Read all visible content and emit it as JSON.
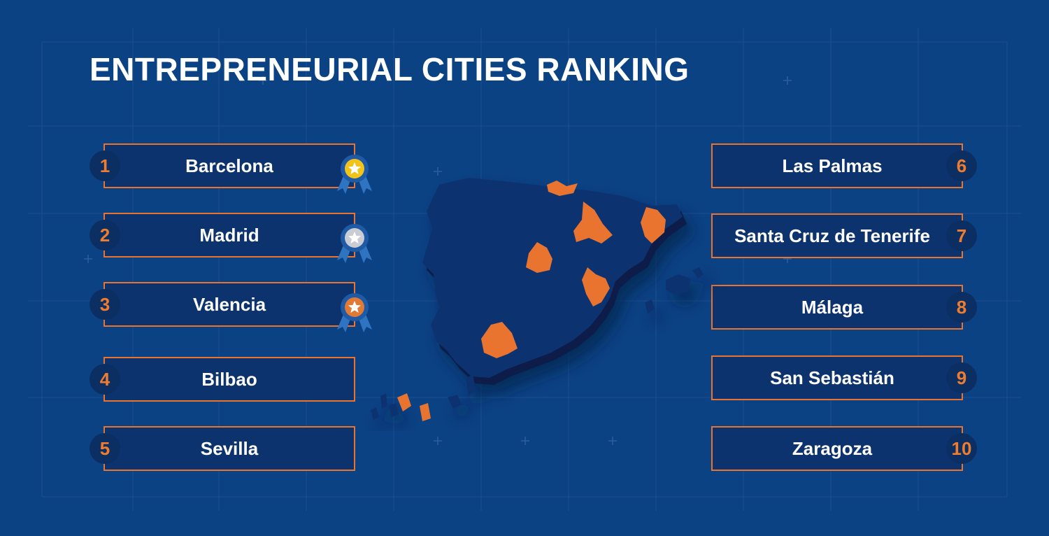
{
  "title": "ENTREPRENEURIAL CITIES RANKING",
  "colors": {
    "background": "#0b4284",
    "accent": "#e87430",
    "box_fill": "#0d336e",
    "gold": "#f2c318",
    "silver": "#c9ccd3",
    "bronze": "#e07a35"
  },
  "ranking": [
    {
      "rank": "1",
      "city": "Barcelona",
      "medal": "gold-medal-icon"
    },
    {
      "rank": "2",
      "city": "Madrid",
      "medal": "silver-medal-icon"
    },
    {
      "rank": "3",
      "city": "Valencia",
      "medal": "bronze-medal-icon"
    },
    {
      "rank": "4",
      "city": "Bilbao"
    },
    {
      "rank": "5",
      "city": "Sevilla"
    },
    {
      "rank": "6",
      "city": "Las Palmas"
    },
    {
      "rank": "7",
      "city": "Santa Cruz de Tenerife"
    },
    {
      "rank": "8",
      "city": "Málaga"
    },
    {
      "rank": "9",
      "city": "San Sebastián"
    },
    {
      "rank": "10",
      "city": "Zaragoza"
    }
  ],
  "map_icon": "spain-map-icon"
}
